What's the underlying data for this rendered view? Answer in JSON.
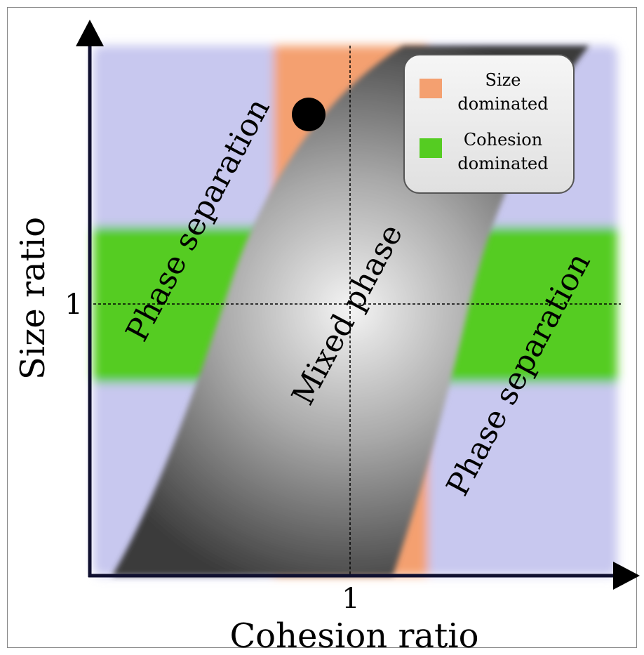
{
  "axes": {
    "y_label": "Size ratio",
    "x_label": "Cohesion ratio",
    "x_tick": "1",
    "y_tick": "1"
  },
  "regions": {
    "left": "Phase separation",
    "center": "Mixed phase",
    "right": "Phase separation"
  },
  "legend": {
    "items": [
      {
        "label": "Size\ndominated",
        "color": "#f4a070"
      },
      {
        "label": "Cohesion\ndominated",
        "color": "#55cc22"
      }
    ]
  }
}
